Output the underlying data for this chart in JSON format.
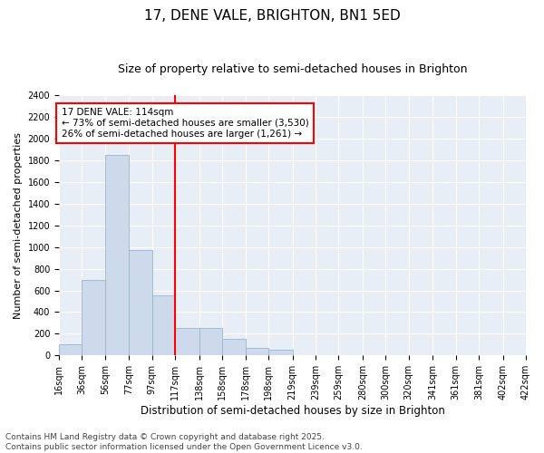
{
  "title": "17, DENE VALE, BRIGHTON, BN1 5ED",
  "subtitle": "Size of property relative to semi-detached houses in Brighton",
  "xlabel": "Distribution of semi-detached houses by size in Brighton",
  "ylabel": "Number of semi-detached properties",
  "bin_edges": [
    16,
    36,
    56,
    77,
    97,
    117,
    138,
    158,
    178,
    198,
    219,
    239,
    259,
    280,
    300,
    320,
    341,
    361,
    381,
    402,
    422
  ],
  "bar_heights": [
    100,
    700,
    1850,
    975,
    550,
    250,
    250,
    150,
    70,
    50,
    0,
    0,
    0,
    0,
    0,
    0,
    0,
    0,
    0,
    0
  ],
  "bar_color": "#ccdaeb",
  "bar_edge_color": "#9ab5cc",
  "property_line_x": 117,
  "property_line_color": "red",
  "annotation_text": "17 DENE VALE: 114sqm\n← 73% of semi-detached houses are smaller (3,530)\n26% of semi-detached houses are larger (1,261) →",
  "annotation_box_color": "red",
  "ylim": [
    0,
    2400
  ],
  "yticks": [
    0,
    200,
    400,
    600,
    800,
    1000,
    1200,
    1400,
    1600,
    1800,
    2000,
    2200,
    2400
  ],
  "background_color": "#e8eef5",
  "grid_color": "white",
  "footer_text": "Contains HM Land Registry data © Crown copyright and database right 2025.\nContains public sector information licensed under the Open Government Licence v3.0.",
  "title_fontsize": 11,
  "subtitle_fontsize": 9,
  "xlabel_fontsize": 8.5,
  "ylabel_fontsize": 8,
  "tick_fontsize": 7,
  "annotation_fontsize": 7.5,
  "footer_fontsize": 6.5
}
